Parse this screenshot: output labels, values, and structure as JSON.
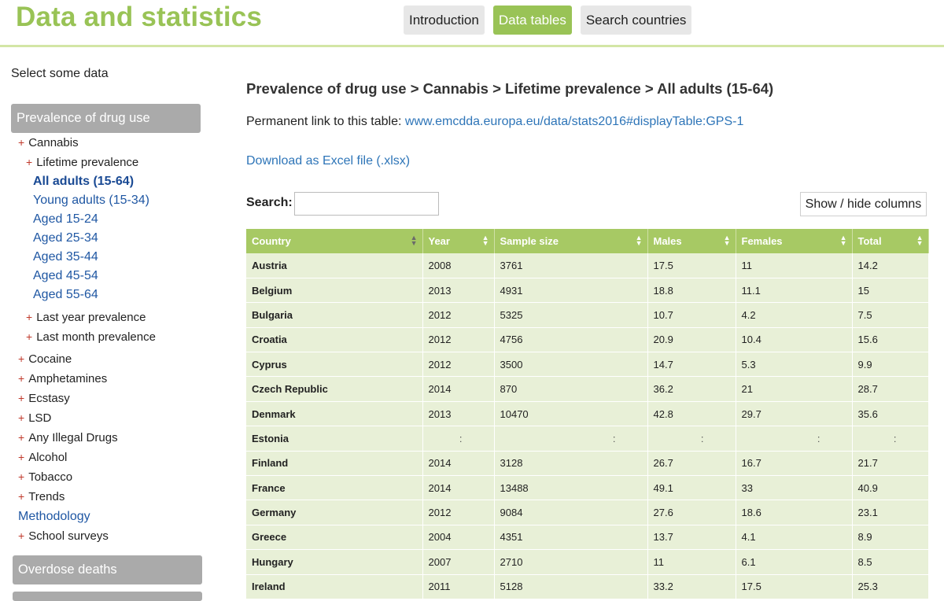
{
  "header": {
    "title": "Data and statistics",
    "nav": [
      {
        "label": "Introduction",
        "active": false
      },
      {
        "label": "Data tables",
        "active": true
      },
      {
        "label": "Search countries",
        "active": false
      }
    ]
  },
  "sidebar": {
    "select_label": "Select some data",
    "panel_prevalence": "Prevalence of drug use",
    "cannabis": "Cannabis",
    "lifetime": "Lifetime prevalence",
    "age_groups": [
      "All adults (15-64)",
      "Young adults (15-34)",
      "Aged 15-24",
      "Aged 25-34",
      "Aged 35-44",
      "Aged 45-54",
      "Aged 55-64"
    ],
    "last_year": "Last year prevalence",
    "last_month": "Last month prevalence",
    "drugs": [
      "Cocaine",
      "Amphetamines",
      "Ecstasy",
      "LSD",
      "Any Illegal Drugs",
      "Alcohol",
      "Tobacco",
      "Trends"
    ],
    "methodology": "Methodology",
    "school_surveys": "School surveys",
    "panel_overdose": "Overdose deaths",
    "plus": "+"
  },
  "main": {
    "title": "Prevalence of drug use > Cannabis > Lifetime prevalence > All adults (15-64)",
    "perm_prefix": "Permanent link to this table: ",
    "perm_link": "www.emcdda.europa.eu/data/stats2016#displayTable:GPS-1",
    "download": "Download as Excel file (.xlsx)",
    "search_label": "Search:",
    "search_value": "",
    "show_hide": "Show / hide columns"
  },
  "table": {
    "columns": [
      "Country",
      "Year",
      "Sample size",
      "Males",
      "Females",
      "Total"
    ],
    "rows": [
      [
        "Austria",
        "2008",
        "3761",
        "17.5",
        "11",
        "14.2"
      ],
      [
        "Belgium",
        "2013",
        "4931",
        "18.8",
        "11.1",
        "15"
      ],
      [
        "Bulgaria",
        "2012",
        "5325",
        "10.7",
        "4.2",
        "7.5"
      ],
      [
        "Croatia",
        "2012",
        "4756",
        "20.9",
        "10.4",
        "15.6"
      ],
      [
        "Cyprus",
        "2012",
        "3500",
        "14.7",
        "5.3",
        "9.9"
      ],
      [
        "Czech Republic",
        "2014",
        "870",
        "36.2",
        "21",
        "28.7"
      ],
      [
        "Denmark",
        "2013",
        "10470",
        "42.8",
        "29.7",
        "35.6"
      ],
      [
        "Estonia",
        ":",
        ":",
        ":",
        ":",
        ":"
      ],
      [
        "Finland",
        "2014",
        "3128",
        "26.7",
        "16.7",
        "21.7"
      ],
      [
        "France",
        "2014",
        "13488",
        "49.1",
        "33",
        "40.9"
      ],
      [
        "Germany",
        "2012",
        "9084",
        "27.6",
        "18.6",
        "23.1"
      ],
      [
        "Greece",
        "2004",
        "4351",
        "13.7",
        "4.1",
        "8.9"
      ],
      [
        "Hungary",
        "2007",
        "2710",
        "11",
        "6.1",
        "8.5"
      ],
      [
        "Ireland",
        "2011",
        "5128",
        "33.2",
        "17.5",
        "25.3"
      ]
    ]
  },
  "colors": {
    "brand": "#99c356",
    "table_header": "#a7c964",
    "row_bg": "#e8f0d7",
    "link": "#2e75b8",
    "panel": "#aaaaaa"
  },
  "icons": {
    "sort": "sort-arrows-icon",
    "expand": "plus-icon"
  }
}
